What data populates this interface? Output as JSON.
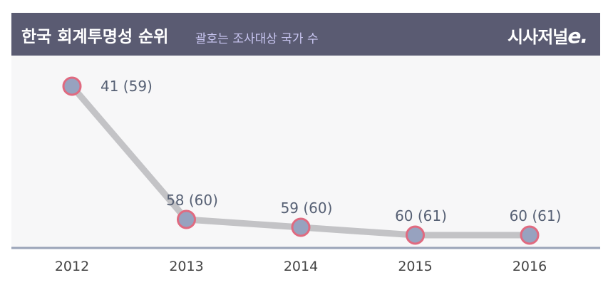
{
  "header": {
    "title": "한국 회계투명성 순위",
    "subtitle": "괄호는 조사대상 국가 수",
    "logo_text": "시사저널",
    "logo_suffix": "e."
  },
  "colors": {
    "header_bg": "#5a5b72",
    "subtitle": "#c9c6f2",
    "line": "#c3c3c6",
    "point_fill": "#97a2bf",
    "point_stroke": "#e06a80"
  },
  "chart_data": {
    "type": "line",
    "title": "한국 회계투명성 순위",
    "subtitle": "괄호는 조사대상 국가 수",
    "x": [
      "2012",
      "2013",
      "2014",
      "2015",
      "2016"
    ],
    "series": [
      {
        "values": [
          41,
          58,
          59,
          60,
          60
        ],
        "labels": [
          "41 (59)",
          "58 (60)",
          "59 (60)",
          "60 (61)",
          "60 (61)"
        ]
      }
    ],
    "ylim": [
      38,
      63
    ],
    "grid": false,
    "legend": "none"
  }
}
